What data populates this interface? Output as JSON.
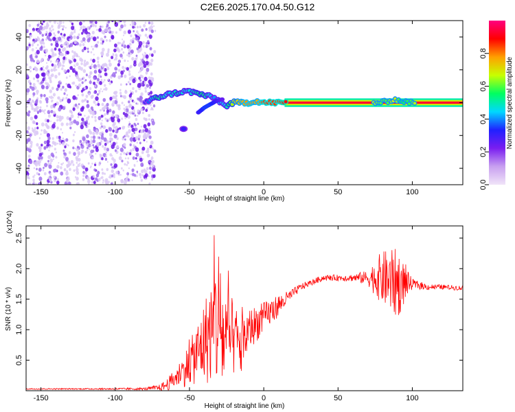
{
  "title": "C2E6.2025.170.04.50.G12",
  "chart_data": [
    {
      "type": "heatmap",
      "xlabel": "Height of straight line (km)",
      "ylabel": "Frequency (Hz)",
      "xlim": [
        -160,
        134
      ],
      "ylim": [
        -50,
        50
      ],
      "x_ticks": [
        "-150",
        "-100",
        "-50",
        "0",
        "50",
        "100"
      ],
      "y_ticks": [
        "-40",
        "-20",
        "0",
        "20",
        "40"
      ],
      "colorbar": {
        "label": "Normalized spectral amplitude",
        "range": [
          0,
          1
        ],
        "ticks": [
          "0.0",
          "0.2",
          "0.4",
          "0.6",
          "0.8"
        ],
        "colors": [
          "#f0e4f8",
          "#c8a0f0",
          "#7a1ef0",
          "#2020ff",
          "#00d8ff",
          "#00ff60",
          "#c8ff00",
          "#ffa000",
          "#ff0000",
          "#ff0080"
        ]
      },
      "noise_region_x": [
        -160,
        -77
      ],
      "signal_ridge": {
        "x": [
          -80,
          -72,
          -65,
          -58,
          -52,
          -46,
          -42,
          -38,
          -34,
          -30,
          -26,
          -20,
          -15,
          -10,
          -5,
          0,
          5,
          10,
          15,
          20,
          40,
          60,
          78,
          84,
          88,
          92,
          100,
          110,
          120,
          134
        ],
        "y": [
          0,
          3,
          5,
          6,
          7,
          6,
          5,
          4,
          3,
          1,
          -2,
          0,
          0,
          0,
          1,
          0,
          0,
          0,
          0,
          0,
          0,
          0,
          0,
          1,
          2,
          1,
          0,
          0,
          0,
          0
        ],
        "amplitude": [
          0.3,
          0.55,
          0.45,
          0.5,
          0.45,
          0.5,
          0.55,
          0.5,
          0.4,
          0.45,
          0.45,
          0.7,
          0.75,
          0.8,
          0.75,
          0.85,
          0.85,
          0.85,
          0.9,
          0.95,
          0.95,
          0.95,
          0.6,
          0.6,
          0.7,
          0.55,
          0.6,
          0.95,
          0.95,
          0.95
        ]
      },
      "secondary_branch": {
        "x": [
          -44,
          -40,
          -36,
          -32,
          -28
        ],
        "y": [
          -6,
          -3,
          -1,
          1,
          2
        ],
        "amplitude": [
          0.3,
          0.35,
          0.35,
          0.3,
          0.25
        ]
      },
      "isolated_blob": {
        "x": -54,
        "y": -16,
        "amplitude": 0.3
      }
    },
    {
      "type": "line",
      "xlabel": "Height of straight line (km)",
      "ylabel": "SNR (10 * v/v)",
      "y_multiplier": "(x10^4)",
      "xlim": [
        -160,
        134
      ],
      "ylim": [
        0,
        2.7
      ],
      "x_ticks": [
        "-150",
        "-100",
        "-50",
        "0",
        "50",
        "100"
      ],
      "y_ticks": [
        "0.5",
        "1.0",
        "1.5",
        "2.0",
        "2.5"
      ],
      "series": [
        {
          "color": "#ff0000",
          "x": [
            -160,
            -120,
            -80,
            -70,
            -65,
            -60,
            -55,
            -50,
            -45,
            -40,
            -35,
            -30,
            -28,
            -25,
            -20,
            -15,
            -12,
            -10,
            -5,
            0,
            5,
            10,
            15,
            20,
            25,
            30,
            35,
            40,
            50,
            60,
            70,
            75,
            80,
            85,
            90,
            95,
            100,
            110,
            120,
            134
          ],
          "y": [
            0.03,
            0.03,
            0.03,
            0.05,
            0.1,
            0.2,
            0.3,
            0.45,
            0.6,
            0.8,
            1.0,
            1.2,
            0.9,
            0.8,
            0.85,
            0.7,
            0.9,
            1.0,
            1.1,
            1.2,
            1.3,
            1.4,
            1.5,
            1.6,
            1.7,
            1.75,
            1.8,
            1.85,
            1.85,
            1.85,
            1.85,
            1.85,
            1.85,
            1.8,
            1.75,
            1.75,
            1.75,
            1.7,
            1.7,
            1.68
          ],
          "jitter_amplitude": [
            0.01,
            0.01,
            0.02,
            0.05,
            0.1,
            0.15,
            0.25,
            0.35,
            0.5,
            0.7,
            0.9,
            1.3,
            1.0,
            0.9,
            0.6,
            0.5,
            0.4,
            0.35,
            0.3,
            0.25,
            0.22,
            0.18,
            0.12,
            0.08,
            0.06,
            0.05,
            0.05,
            0.05,
            0.05,
            0.06,
            0.12,
            0.3,
            0.45,
            0.5,
            0.6,
            0.3,
            0.08,
            0.05,
            0.04,
            0.04
          ]
        }
      ]
    }
  ]
}
